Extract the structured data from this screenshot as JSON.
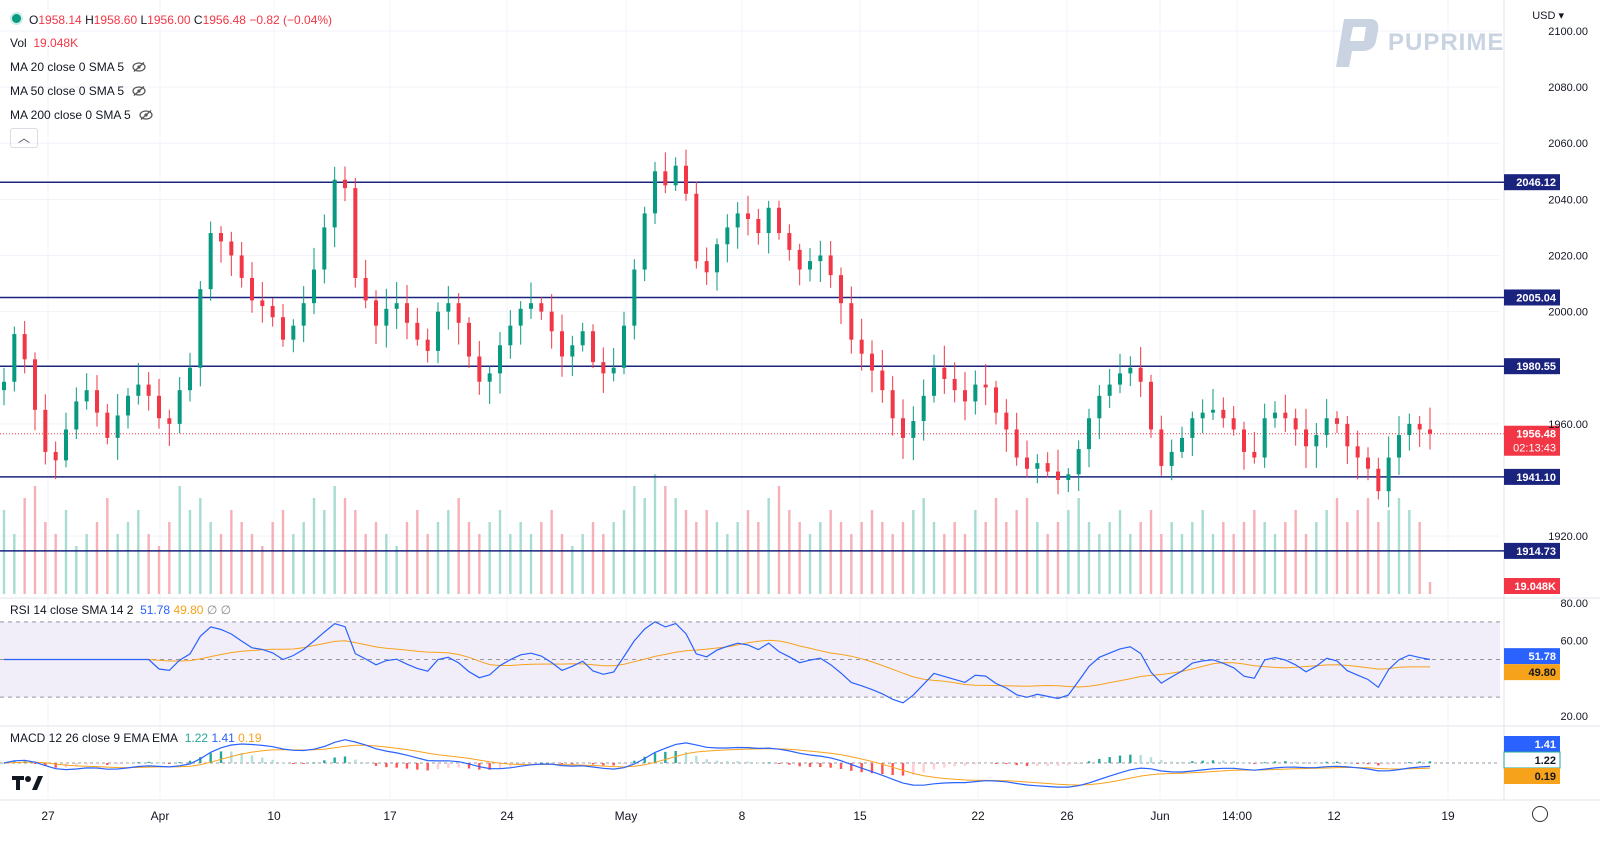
{
  "header": {
    "ohlc": {
      "o_label": "O",
      "o": "1958.14",
      "h_label": "H",
      "h": "1958.60",
      "l_label": "L",
      "l": "1956.00",
      "c_label": "C",
      "c": "1956.48",
      "change": "−0.82 (−0.04%)"
    },
    "vol_label": "Vol",
    "vol": "19.048K",
    "ma": [
      "MA 20 close 0 SMA 5",
      "MA 50 close 0 SMA 5",
      "MA 200 close 0 SMA 5"
    ],
    "currency": "USD"
  },
  "logo": {
    "text": "PUPRIME"
  },
  "rsi": {
    "title": "RSI 14 close SMA 14 2",
    "v1": "51.78",
    "v2": "49.80",
    "v3": "∅",
    "v4": "∅"
  },
  "macd": {
    "title": "MACD 12 26 close 9 EMA EMA",
    "v1": "1.22",
    "v2": "1.41",
    "v3": "0.19"
  },
  "colors": {
    "up": "#089981",
    "down": "#f23645",
    "level": "#1a237e",
    "rsi_line": "#2962ff",
    "rsi_sma": "#f7a21b",
    "macd_line": "#2962ff",
    "signal": "#f7a21b"
  },
  "chart_data": {
    "type": "candlestick",
    "price_axis": {
      "ticks": [
        "2100.00",
        "2080.00",
        "2060.00",
        "2040.00",
        "2020.00",
        "2000.00",
        "1960.00",
        "1920.00"
      ],
      "range": [
        1897,
        2101
      ]
    },
    "x_ticks": [
      "27",
      "Apr",
      "10",
      "17",
      "24",
      "May",
      "8",
      "15",
      "22",
      "26",
      "Jun",
      "14:00",
      "12",
      "19"
    ],
    "levels": [
      2046.12,
      2005.04,
      1980.55,
      1941.1,
      1914.73
    ],
    "level_labels": [
      "2046.12",
      "2005.04",
      "1980.55",
      "1941.10",
      "1914.73"
    ],
    "last_price": {
      "value": "1956.48",
      "countdown": "02:13:43"
    },
    "volume_label": "19.048K",
    "rsi_axis": [
      "80.00",
      "60.00",
      "20.00"
    ],
    "rsi_last": [
      "51.78",
      "49.80"
    ],
    "macd_last": [
      "1.41",
      "1.22",
      "0.19"
    ],
    "close_path": [
      1975,
      1992,
      1983,
      1965,
      1950,
      1947,
      1958,
      1968,
      1972,
      1964,
      1955,
      1963,
      1970,
      1974,
      1970,
      1962,
      1960,
      1972,
      1980,
      2008,
      2028,
      2025,
      2020,
      2012,
      2004,
      2002,
      1998,
      1990,
      1995,
      2003,
      2015,
      2030,
      2047,
      2044,
      2012,
      2004,
      1995,
      2001,
      2003,
      1996,
      1990,
      1986,
      2000,
      2003,
      1996,
      1984,
      1975,
      1978,
      1988,
      1995,
      2001,
      2003,
      2000,
      1993,
      1984,
      1988,
      1993,
      1982,
      1978,
      1980,
      1995,
      2015,
      2035,
      2050,
      2045,
      2052,
      2042,
      2018,
      2014,
      2024,
      2030,
      2035,
      2033,
      2028,
      2037,
      2028,
      2022,
      2015,
      2018,
      2020,
      2013,
      2003,
      1990,
      1985,
      1979,
      1972,
      1962,
      1955,
      1961,
      1970,
      1980,
      1976,
      1972,
      1968,
      1974,
      1973,
      1964,
      1958,
      1948,
      1944,
      1946,
      1943,
      1940,
      1942,
      1951,
      1962,
      1970,
      1974,
      1978,
      1980,
      1975,
      1958,
      1945,
      1950,
      1955,
      1962,
      1964,
      1965,
      1962,
      1958,
      1950,
      1948,
      1962,
      1964,
      1962,
      1958,
      1952,
      1956,
      1962,
      1960,
      1952,
      1948,
      1944,
      1936,
      1948,
      1956,
      1960,
      1958,
      1956.5
    ],
    "volume_rel": [
      0.7,
      0.5,
      0.8,
      0.9,
      0.6,
      0.5,
      0.7,
      0.4,
      0.5,
      0.6,
      0.8,
      0.5,
      0.6,
      0.7,
      0.5,
      0.4,
      0.6,
      0.9,
      0.7,
      0.8,
      0.6,
      0.5,
      0.7,
      0.6,
      0.5,
      0.4,
      0.6,
      0.7,
      0.5,
      0.6,
      0.8,
      0.7,
      0.9,
      0.8,
      0.7,
      0.5,
      0.6,
      0.5,
      0.4,
      0.6,
      0.7,
      0.5,
      0.6,
      0.7,
      0.8,
      0.6,
      0.5,
      0.6,
      0.7,
      0.5,
      0.6,
      0.5,
      0.6,
      0.7,
      0.5,
      0.4,
      0.5,
      0.6,
      0.5,
      0.6,
      0.7,
      0.9,
      0.8,
      1.0,
      0.9,
      0.8,
      0.7,
      0.6,
      0.7,
      0.6,
      0.5,
      0.6,
      0.7,
      0.6,
      0.8,
      0.9,
      0.7,
      0.6,
      0.5,
      0.6,
      0.7,
      0.6,
      0.5,
      0.6,
      0.7,
      0.6,
      0.5,
      0.6,
      0.7,
      0.8,
      0.6,
      0.5,
      0.6,
      0.5,
      0.7,
      0.6,
      0.8,
      0.6,
      0.7,
      0.8,
      0.6,
      0.5,
      0.6,
      0.7,
      0.8,
      0.6,
      0.5,
      0.6,
      0.7,
      0.5,
      0.6,
      0.7,
      0.5,
      0.6,
      0.5,
      0.6,
      0.7,
      0.5,
      0.6,
      0.5,
      0.6,
      0.7,
      0.6,
      0.5,
      0.6,
      0.7,
      0.5,
      0.6,
      0.7,
      0.8,
      0.6,
      0.7,
      0.8,
      0.6,
      0.7,
      0.8,
      0.7,
      0.6,
      0.1
    ]
  }
}
